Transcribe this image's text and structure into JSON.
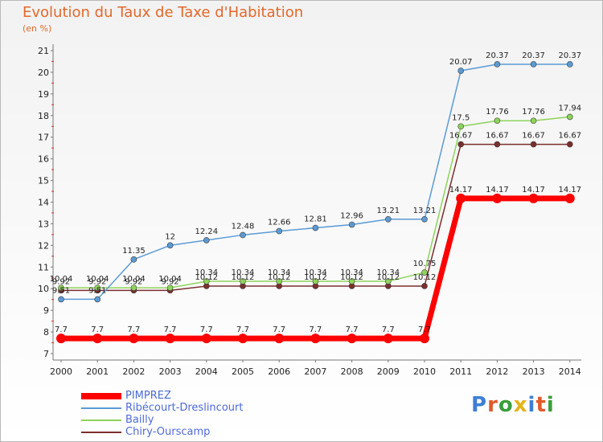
{
  "chart_data": {
    "type": "line",
    "title": "Evolution du Taux de Taxe d'Habitation",
    "subtitle": "(en %)",
    "x": [
      "2000",
      "2001",
      "2002",
      "2003",
      "2004",
      "2005",
      "2006",
      "2007",
      "2008",
      "2009",
      "2010",
      "2011",
      "2012",
      "2013",
      "2014"
    ],
    "ylim": [
      7,
      21
    ],
    "yticks": [
      "7",
      "8",
      "9",
      "10",
      "11",
      "12",
      "13",
      "14",
      "15",
      "16",
      "17",
      "18",
      "19",
      "20",
      "21"
    ],
    "grid": false,
    "legend_position": "bottom-left",
    "series": [
      {
        "name": "PIMPREZ",
        "color": "#ff0000",
        "values": [
          7.7,
          7.7,
          7.7,
          7.7,
          7.7,
          7.7,
          7.7,
          7.7,
          7.7,
          7.7,
          7.7,
          14.17,
          14.17,
          14.17,
          14.17
        ],
        "labels": [
          "7.7",
          "7.7",
          "7.7",
          "7.7",
          "7.7",
          "7.7",
          "7.7",
          "7.7",
          "7.7",
          "7.7",
          "7.7",
          "14.17",
          "14.17",
          "14.17",
          "14.17"
        ]
      },
      {
        "name": "Ribécourt-Dreslincourt",
        "color": "#5b9bd5",
        "values": [
          9.51,
          9.51,
          11.35,
          12,
          12.24,
          12.48,
          12.66,
          12.81,
          12.96,
          13.21,
          13.21,
          20.07,
          20.37,
          20.37,
          20.37
        ],
        "labels": [
          "9.51",
          "9.51",
          "11.35",
          "12",
          "12.24",
          "12.48",
          "12.66",
          "12.81",
          "12.96",
          "13.21",
          "13.21",
          "20.07",
          "20.37",
          "20.37",
          "20.37"
        ]
      },
      {
        "name": "Bailly",
        "color": "#8ed35b",
        "values": [
          10.04,
          10.04,
          10.04,
          10.04,
          10.34,
          10.34,
          10.34,
          10.34,
          10.34,
          10.34,
          10.75,
          17.5,
          17.76,
          17.76,
          17.94
        ],
        "labels": [
          "10.04",
          "10.04",
          "10.04",
          "10.04",
          "10.34",
          "10.34",
          "10.34",
          "10.34",
          "10.34",
          "10.34",
          "10.75",
          "17.5",
          "17.76",
          "17.76",
          "17.94"
        ]
      },
      {
        "name": "Chiry-Ourscamp",
        "color": "#7b2e2e",
        "values": [
          9.92,
          9.92,
          9.92,
          9.92,
          10.12,
          10.12,
          10.12,
          10.12,
          10.12,
          10.12,
          10.12,
          16.67,
          16.67,
          16.67,
          16.67
        ],
        "labels": [
          "9.92",
          "9.92",
          "9.92",
          "9.92",
          "10.12",
          "10.12",
          "10.12",
          "10.12",
          "10.12",
          "10.12",
          "10.12",
          "16.67",
          "16.67",
          "16.67",
          "16.67"
        ]
      }
    ]
  },
  "legend": {
    "items": [
      {
        "label": "PIMPREZ"
      },
      {
        "label": "Ribécourt-Dreslincourt"
      },
      {
        "label": "Bailly"
      },
      {
        "label": "Chiry-Ourscamp"
      }
    ]
  },
  "logo": {
    "text": "Proxiti",
    "colors": [
      "#3d7fd6",
      "#e05a2a",
      "#3a9e3a",
      "#e6b21a",
      "#3d7fd6",
      "#e05a2a",
      "#3a9e3a"
    ]
  }
}
